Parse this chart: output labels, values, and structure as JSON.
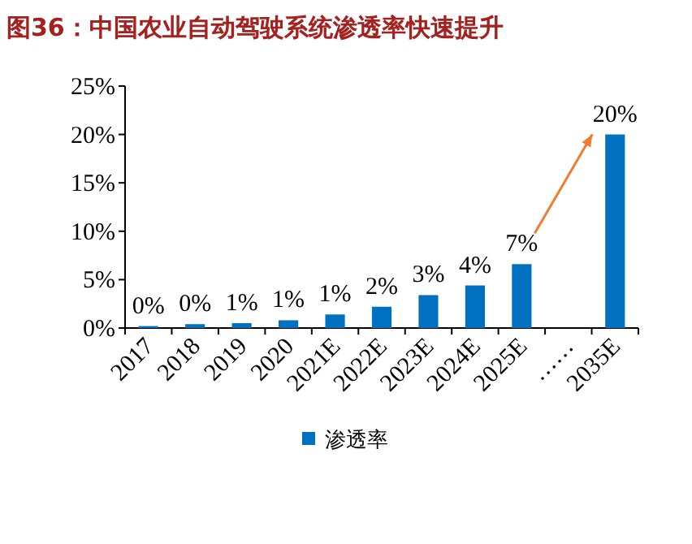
{
  "chart_data": {
    "type": "bar",
    "title": "图36：中国农业自动驾驶系统渗透率快速提升",
    "categories": [
      "2017",
      "2018",
      "2019",
      "2020",
      "2021E",
      "2022E",
      "2023E",
      "2024E",
      "2025E",
      "……",
      "2035E"
    ],
    "series": [
      {
        "name": "渗透率",
        "color": "#0070c0",
        "values": [
          0.2,
          0.4,
          0.5,
          0.8,
          1.4,
          2.2,
          3.4,
          4.4,
          6.6,
          null,
          20.0
        ],
        "value_labels": [
          "0%",
          "0%",
          "1%",
          "1%",
          "1%",
          "2%",
          "3%",
          "4%",
          "7%",
          null,
          "20%"
        ]
      }
    ],
    "ylim": [
      0,
      25
    ],
    "yticks": [
      {
        "value": 0,
        "label": "0%"
      },
      {
        "value": 5,
        "label": "5%"
      },
      {
        "value": 10,
        "label": "10%"
      },
      {
        "value": 15,
        "label": "15%"
      },
      {
        "value": 20,
        "label": "20%"
      },
      {
        "value": 25,
        "label": "25%"
      }
    ],
    "legend": "bottom",
    "grid": false
  }
}
